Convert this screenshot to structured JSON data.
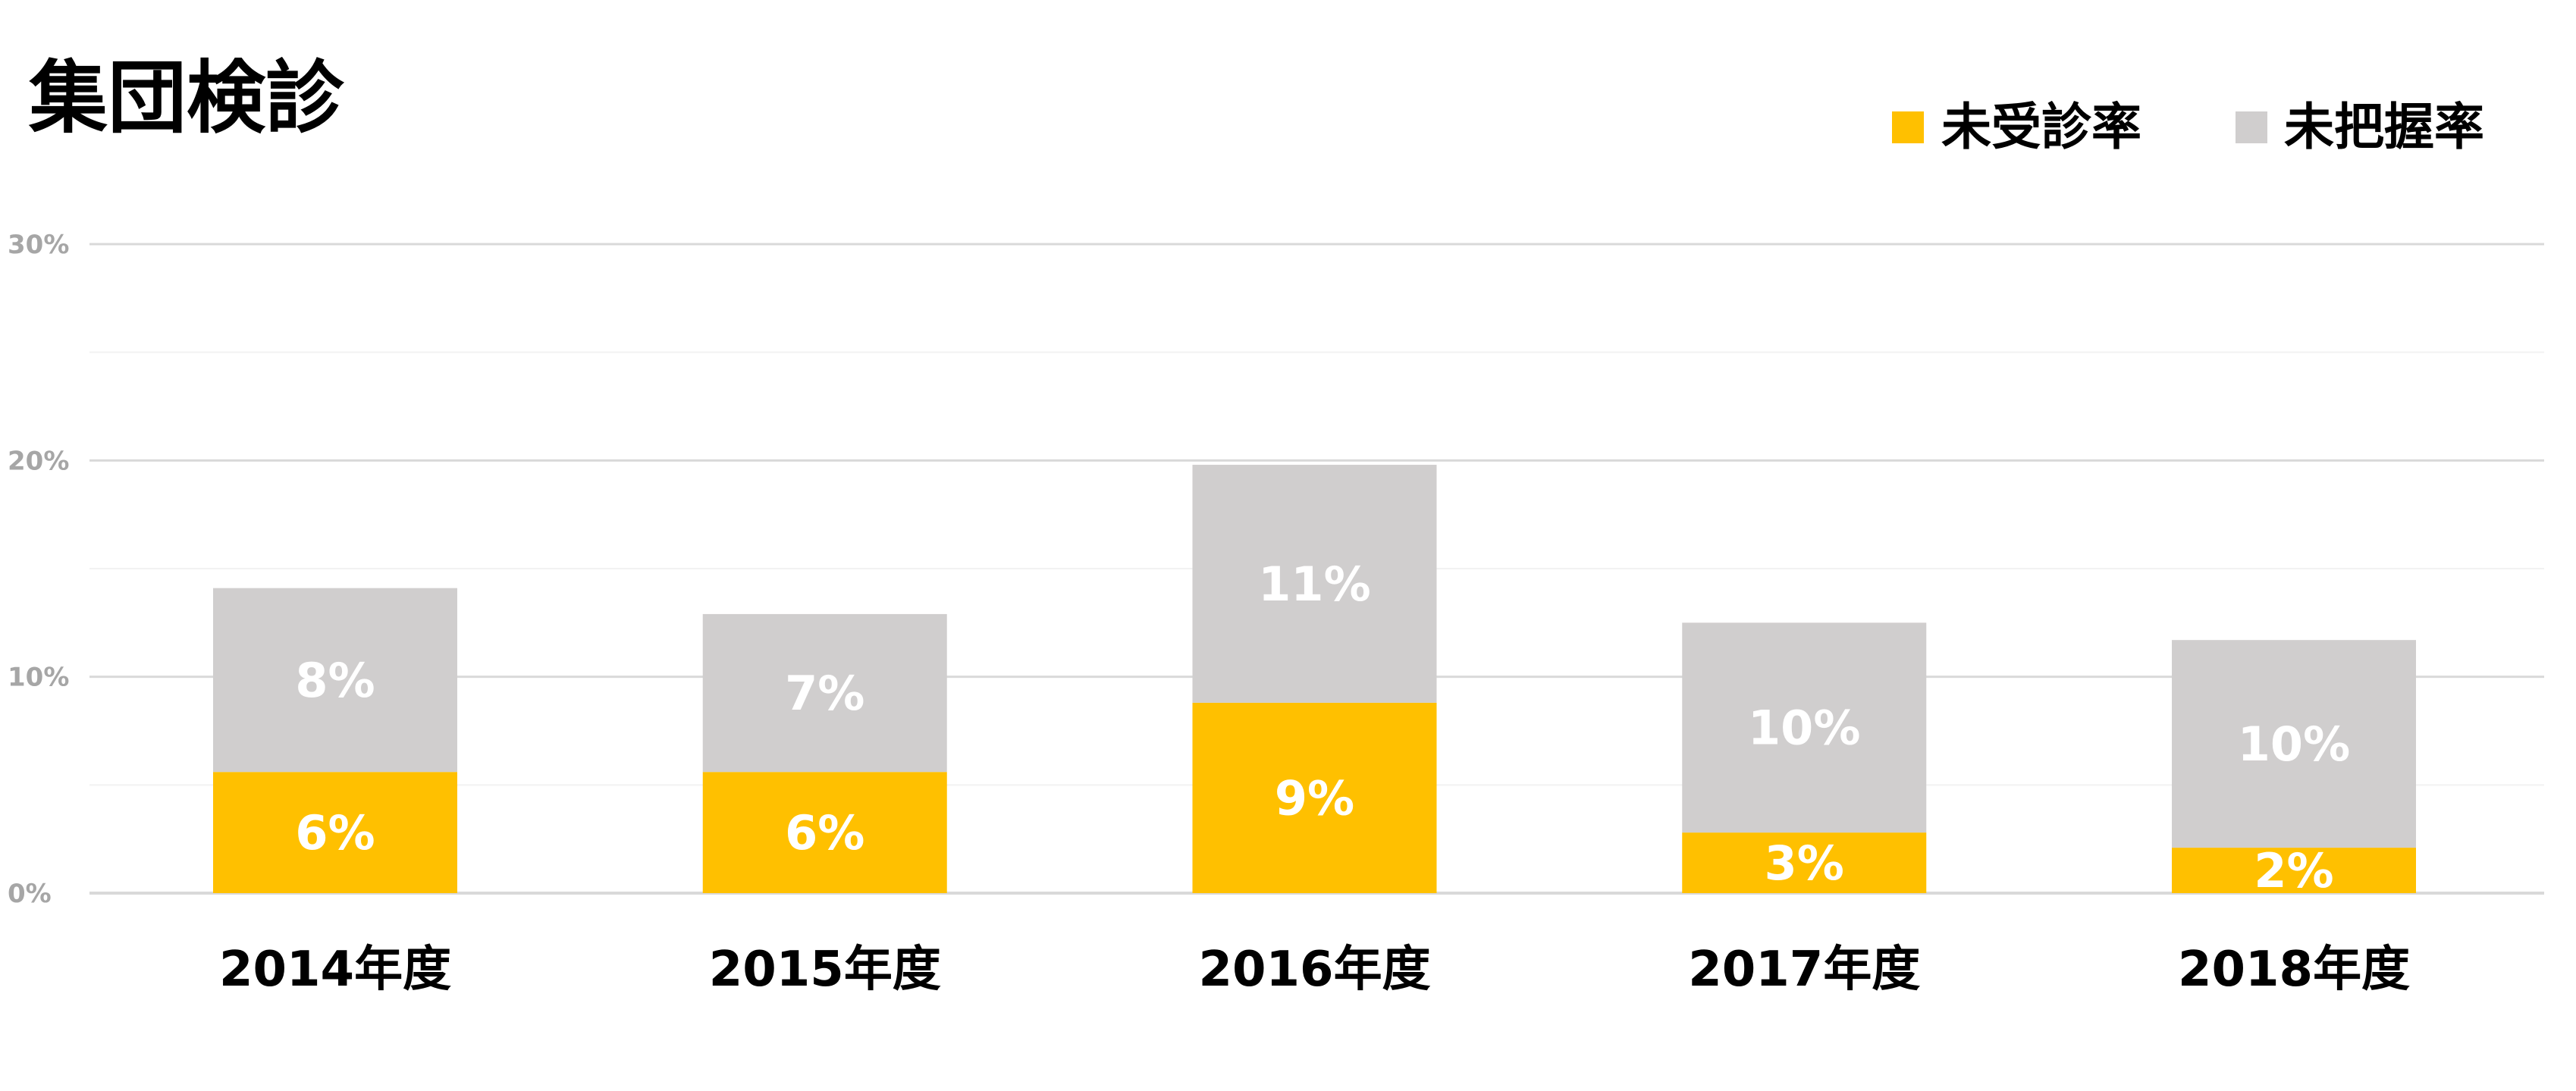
{
  "chart_data": {
    "type": "bar",
    "stacked": true,
    "title": "集団検診",
    "categories": [
      "2014年度",
      "2015年度",
      "2016年度",
      "2017年度",
      "2018年度"
    ],
    "series": [
      {
        "name": "未受診率",
        "values": [
          5.6,
          5.6,
          8.8,
          2.8,
          2.1
        ],
        "labels": [
          "6%",
          "6%",
          "9%",
          "3%",
          "2%"
        ],
        "color": "#ffc000"
      },
      {
        "name": "未把握率",
        "values": [
          8.5,
          7.3,
          11.0,
          9.7,
          9.6
        ],
        "labels": [
          "8%",
          "7%",
          "11%",
          "10%",
          "10%"
        ],
        "color": "#d0cece"
      }
    ],
    "ylim": [
      0,
      30
    ],
    "yticks": [
      "0%",
      "10%",
      "20%",
      "30%"
    ],
    "grid": true,
    "legend_position": "top-right",
    "gridline_color": "#d9d9d9",
    "minor_gridline_color": "#f2f2f2"
  }
}
